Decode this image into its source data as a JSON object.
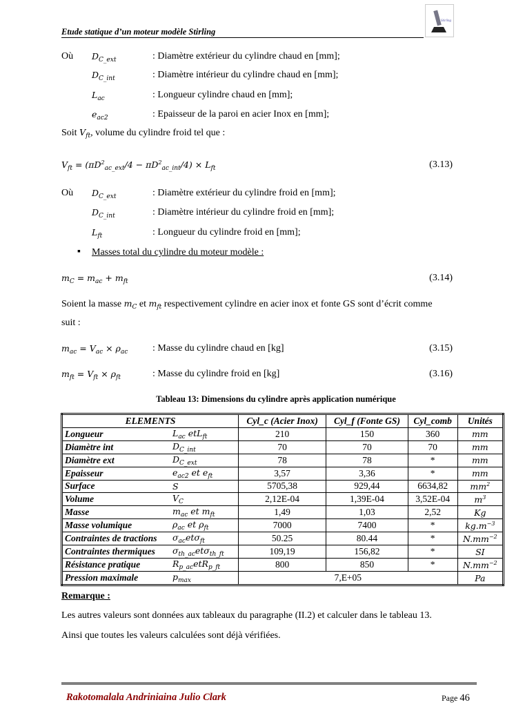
{
  "header": {
    "title": "Etude statique d’un moteur modèle Stirling",
    "logo_text": "Stirling engine"
  },
  "block1": {
    "intro": "Où",
    "rows": [
      {
        "sym": [
          {
            "b": "D",
            "sub": "C_ext"
          }
        ],
        "desc": ": Diamètre extérieur du cylindre chaud en [mm];"
      },
      {
        "sym": [
          {
            "b": "D",
            "sub": "C_int"
          }
        ],
        "desc": ": Diamètre intérieur du cylindre chaud  en [mm];"
      },
      {
        "sym": [
          {
            "b": "L",
            "sub": "ac"
          }
        ],
        "desc": ": Longueur cylindre chaud  en [mm];"
      },
      {
        "sym": [
          {
            "b": "e",
            "sub": "ac2"
          }
        ],
        "desc": ": Epaisseur de la paroi en acier Inox en [mm];"
      }
    ]
  },
  "soit": {
    "pre": "Soit  ",
    "sym": [
      {
        "b": "V",
        "sub": "ft"
      }
    ],
    "post": ", volume du cylindre froid tel que :"
  },
  "eq313": {
    "formula": [
      {
        "b": "V",
        "sub": "ft"
      },
      " = (",
      {
        "b": "πD",
        "sup": "2",
        "sub": "ac_ext"
      },
      "/4 − ",
      {
        "b": "πD",
        "sup": "2",
        "sub": "ac_int"
      },
      "/4) × ",
      {
        "b": "L",
        "sub": "ft"
      }
    ],
    "num": "(3.13)"
  },
  "block2": {
    "intro": "Où",
    "rows": [
      {
        "sym": [
          {
            "b": "D",
            "sub": "C_ext"
          }
        ],
        "desc": ": Diamètre extérieur du cylindre froid en [mm];"
      },
      {
        "sym": [
          {
            "b": "D",
            "sub": "C_int"
          }
        ],
        "desc": ": Diamètre intérieur du cylindre froid  en [mm];"
      },
      {
        "sym": [
          {
            "b": "L",
            "sub": "ft"
          }
        ],
        "desc": ": Longueur du cylindre froid  en [mm];"
      }
    ]
  },
  "bullet": "Masses total du cylindre du moteur modèle :",
  "eq314": {
    "formula": [
      {
        "b": "m",
        "sub": "C"
      },
      " = ",
      {
        "b": "m",
        "sub": "ac"
      },
      " + ",
      {
        "b": "m",
        "sub": "ft"
      }
    ],
    "num": "(3.14)"
  },
  "para1": {
    "a": "Soient la masse ",
    "s1": [
      {
        "b": "m",
        "sub": "C"
      }
    ],
    "b": " et ",
    "s2": [
      {
        "b": "m",
        "sub": "ft"
      }
    ],
    "c": " respectivement cylindre en acier inox et fonte GS sont d’écrit comme",
    "line2": "suit :"
  },
  "eq315": {
    "formula": [
      {
        "b": "m",
        "sub": "ac"
      },
      " = ",
      {
        "b": "V",
        "sub": "ac"
      },
      " × ",
      {
        "b": "ρ",
        "sub": "ac"
      }
    ],
    "desc": ": Masse du cylindre chaud en [kg]",
    "num": "(3.15)"
  },
  "eq316": {
    "formula": [
      {
        "b": "m",
        "sub": "ft"
      },
      " = ",
      {
        "b": "V",
        "sub": "ft"
      },
      " × ",
      {
        "b": "ρ",
        "sub": "ft"
      }
    ],
    "desc": ": Masse du cylindre froid en [kg]",
    "num": "(3.16)"
  },
  "table": {
    "caption": "Tableau 13: Dimensions du cylindre après application numérique",
    "headers": [
      "ELEMENTS",
      "Cyl_c (Acier Inox)",
      "Cyl_f (Fonte GS)",
      "Cyl_comb",
      "Unités"
    ],
    "rows": [
      {
        "label": "Longueur",
        "sym": [
          {
            "b": "L",
            "sub": "ac"
          },
          " et",
          {
            "b": "L",
            "sub": "ft"
          }
        ],
        "c": "210",
        "f": "150",
        "comb": "360",
        "unit": [
          {
            "b": "mm"
          }
        ]
      },
      {
        "label": "Diamètre int",
        "sym": [
          {
            "b": "D",
            "sub": "C_int"
          }
        ],
        "c": "70",
        "f": "70",
        "comb": "70",
        "unit": [
          {
            "b": "mm"
          }
        ]
      },
      {
        "label": "Diamètre ext",
        "sym": [
          {
            "b": "D",
            "sub": "C_ext"
          }
        ],
        "c": "78",
        "f": "78",
        "comb": "*",
        "unit": [
          {
            "b": "mm"
          }
        ]
      },
      {
        "label": "Epaisseur",
        "sym": [
          {
            "b": "e",
            "sub": "ac2"
          },
          " et ",
          {
            "b": "e",
            "sub": "ft"
          }
        ],
        "c": "3,57",
        "f": "3,36",
        "comb": "*",
        "unit": [
          {
            "b": "mm"
          }
        ]
      },
      {
        "label": "Surface",
        "sym": [
          {
            "b": "S"
          }
        ],
        "c": "5705,38",
        "f": "929,44",
        "comb": "6634,82",
        "unit": [
          {
            "b": "mm",
            "sup": "2"
          }
        ]
      },
      {
        "label": "Volume",
        "sym": [
          {
            "b": "V",
            "sub": "C"
          }
        ],
        "c": "2,12E-04",
        "f": "1,39E-04",
        "comb": "3,52E-04",
        "unit": [
          {
            "b": "m",
            "sup": "3"
          }
        ]
      },
      {
        "label": "Masse",
        "sym": [
          {
            "b": "m",
            "sub": "ac"
          },
          " et ",
          {
            "b": "m",
            "sub": "ft"
          }
        ],
        "c": "1,49",
        "f": "1,03",
        "comb": "2,52",
        "unit": [
          {
            "b": "Kg"
          }
        ]
      },
      {
        "label": "Masse volumique",
        "sym": [
          {
            "b": "ρ",
            "sub": "ac"
          },
          " et ",
          {
            "b": "ρ",
            "sub": "ft"
          }
        ],
        "c": "7000",
        "f": "7400",
        "comb": "*",
        "unit": [
          {
            "b": "kg.m",
            "sup": "−3"
          }
        ]
      },
      {
        "label": "Contraintes de tractions",
        "sym": [
          {
            "b": "σ",
            "sub": "ac"
          },
          "et",
          {
            "b": "σ",
            "sub": "ft"
          }
        ],
        "c": "50.25",
        "f": "80.44",
        "comb": "*",
        "unit": [
          {
            "b": "N.mm",
            "sup": "−2"
          }
        ]
      },
      {
        "label": "Contraintes thermiques",
        "sym": [
          {
            "b": "σ",
            "sub": "th_ac"
          },
          "et",
          {
            "b": "σ",
            "sub": "th_ft"
          }
        ],
        "c": "109,19",
        "f": "156,82",
        "comb": "*",
        "unit": [
          {
            "b": "SI"
          }
        ]
      },
      {
        "label": "Résistance pratique",
        "sym": [
          {
            "b": "R",
            "sub": "p_ac"
          },
          "et",
          {
            "b": "R",
            "sub": "p_ft"
          }
        ],
        "c": "800",
        "f": "850",
        "comb": "*",
        "unit": [
          {
            "b": "N.mm",
            "sup": "−2"
          }
        ]
      },
      {
        "label": "Pression maximale",
        "sym": [
          {
            "b": "p",
            "sub": "max"
          }
        ],
        "merged": "7,E+05",
        "unit": [
          {
            "b": "Pa"
          }
        ]
      }
    ]
  },
  "remarque": {
    "title": "Remarque :",
    "line1": "Les autres valeurs sont données aux tableaux du paragraphe (II.2) et calculer dans le tableau 13.",
    "line2": "Ainsi que toutes les valeurs calculées sont déjà vérifiées."
  },
  "footer": {
    "author": "Rakotomalala Andriniaina Julio Clark",
    "page_label": "Page ",
    "page_num": "46"
  }
}
